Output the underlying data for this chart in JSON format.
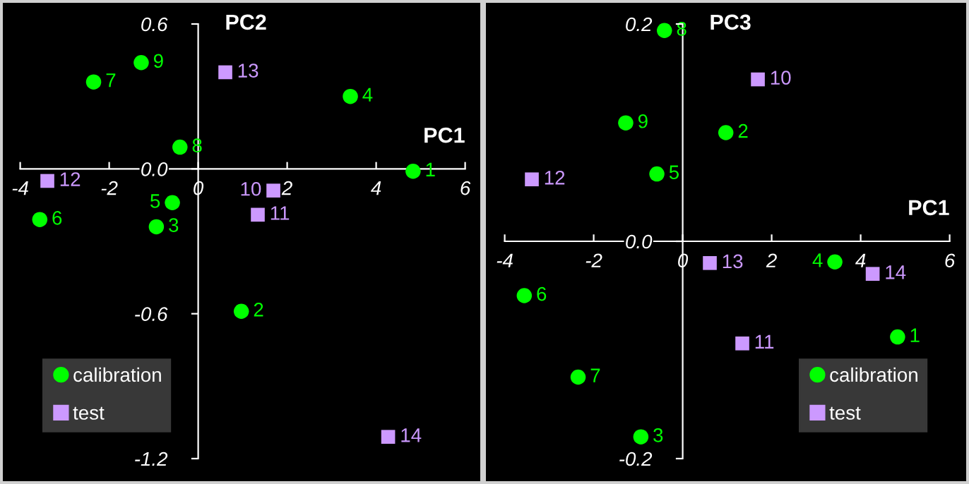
{
  "chart_data": [
    {
      "type": "scatter",
      "xlabel": "PC1",
      "ylabel": "PC2",
      "xlim": [
        -4,
        6
      ],
      "ylim": [
        -1.2,
        0.6
      ],
      "xticks": [
        -4,
        -2,
        0,
        2,
        4,
        6
      ],
      "yticks": [
        {
          "value": 0.6,
          "label": "0.6"
        },
        {
          "value": 0,
          "label": "0.0"
        },
        {
          "value": -0.6,
          "label": "-0.6"
        },
        {
          "value": -1.2,
          "label": "-1.2"
        }
      ],
      "legend": "bottom left",
      "series": [
        {
          "name": "calibration",
          "color": "#00ff00",
          "marker": "circle",
          "x": [
            4.83,
            0.97,
            -0.94,
            3.42,
            -0.58,
            -3.56,
            -2.35,
            -0.41,
            -1.28
          ],
          "values": [
            -0.01,
            -0.59,
            -0.24,
            0.3,
            -0.14,
            -0.21,
            0.36,
            0.09,
            0.44
          ]
        },
        {
          "name": "test",
          "color": "#cc99ff",
          "marker": "square",
          "x": [
            1.69,
            1.34,
            -3.39,
            0.61,
            4.27
          ],
          "values": [
            -0.09,
            -0.19,
            -0.05,
            0.4,
            -1.11
          ]
        }
      ],
      "annotations": [
        {
          "text": "1",
          "x": 4.83,
          "y": -0.01
        },
        {
          "text": "2",
          "x": 0.97,
          "y": -0.59
        },
        {
          "text": "3",
          "x": -0.94,
          "y": -0.24
        },
        {
          "text": "4",
          "x": 3.42,
          "y": 0.3
        },
        {
          "text": "5",
          "x": -0.58,
          "y": -0.14
        },
        {
          "text": "6",
          "x": -3.56,
          "y": -0.21
        },
        {
          "text": "7",
          "x": -2.35,
          "y": 0.36
        },
        {
          "text": "8",
          "x": -0.41,
          "y": 0.09
        },
        {
          "text": "9",
          "x": -1.28,
          "y": 0.44
        },
        {
          "text": "10",
          "x": 1.69,
          "y": -0.09
        },
        {
          "text": "11",
          "x": 1.34,
          "y": -0.19
        },
        {
          "text": "12",
          "x": -3.39,
          "y": -0.05
        },
        {
          "text": "13",
          "x": 0.61,
          "y": 0.4
        },
        {
          "text": "14",
          "x": 4.27,
          "y": -1.11
        }
      ]
    },
    {
      "type": "scatter",
      "xlabel": "PC1",
      "ylabel": "PC3",
      "xlim": [
        -4,
        6
      ],
      "ylim": [
        -0.2,
        0.2
      ],
      "xticks": [
        -4,
        -2,
        0,
        2,
        4,
        6
      ],
      "yticks": [
        {
          "value": 0.2,
          "label": "0.2"
        },
        {
          "value": 0,
          "label": "0.0"
        },
        {
          "value": -0.2,
          "label": "-0.2"
        }
      ],
      "legend": "bottom right",
      "series": [
        {
          "name": "calibration",
          "color": "#00ff00",
          "marker": "circle",
          "x": [
            4.83,
            0.97,
            -0.94,
            3.42,
            -0.58,
            -3.56,
            -2.35,
            -0.41,
            -1.28
          ],
          "values": [
            -0.088,
            0.1,
            -0.18,
            -0.019,
            0.062,
            -0.05,
            -0.125,
            0.194,
            0.109
          ]
        },
        {
          "name": "test",
          "color": "#cc99ff",
          "marker": "square",
          "x": [
            1.69,
            1.34,
            -3.39,
            0.61,
            4.27
          ],
          "values": [
            0.149,
            -0.094,
            0.057,
            -0.02,
            -0.03
          ]
        }
      ],
      "annotations": [
        {
          "text": "1",
          "x": 4.83,
          "y": -0.088
        },
        {
          "text": "2",
          "x": 0.97,
          "y": 0.1
        },
        {
          "text": "3",
          "x": -0.94,
          "y": -0.18
        },
        {
          "text": "4",
          "x": 3.42,
          "y": -0.019
        },
        {
          "text": "5",
          "x": -0.58,
          "y": 0.062
        },
        {
          "text": "6",
          "x": -3.56,
          "y": -0.05
        },
        {
          "text": "7",
          "x": -2.35,
          "y": -0.125
        },
        {
          "text": "8",
          "x": -0.41,
          "y": 0.194
        },
        {
          "text": "9",
          "x": -1.28,
          "y": 0.109
        },
        {
          "text": "10",
          "x": 1.69,
          "y": 0.149
        },
        {
          "text": "11",
          "x": 1.34,
          "y": -0.094
        },
        {
          "text": "12",
          "x": -3.39,
          "y": 0.057
        },
        {
          "text": "13",
          "x": 0.61,
          "y": -0.02
        },
        {
          "text": "14",
          "x": 4.27,
          "y": -0.03
        }
      ]
    }
  ]
}
